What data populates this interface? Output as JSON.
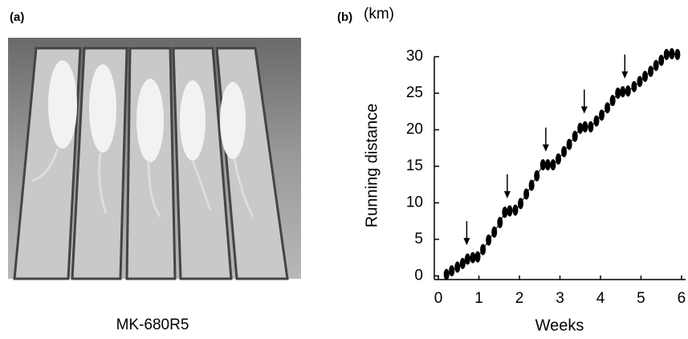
{
  "photo_panel": {
    "label": "(a)",
    "caption": "MK-680R5"
  },
  "chart_data": {
    "type": "line",
    "label": "(b)",
    "unit": "(km)",
    "y_label": "Running distance",
    "x_label": "Weeks",
    "x": [
      0.2,
      0.33,
      0.47,
      0.6,
      0.72,
      0.85,
      0.97,
      1.1,
      1.24,
      1.38,
      1.52,
      1.64,
      1.76,
      1.9,
      2.03,
      2.17,
      2.3,
      2.43,
      2.58,
      2.7,
      2.83,
      2.96,
      3.1,
      3.23,
      3.37,
      3.5,
      3.62,
      3.76,
      3.9,
      4.03,
      4.17,
      4.3,
      4.43,
      4.55,
      4.68,
      4.83,
      4.97,
      5.1,
      5.24,
      5.37,
      5.5,
      5.63,
      5.76,
      5.9
    ],
    "series": [
      {
        "color": "#000000",
        "values": [
          0.2,
          0.7,
          1.2,
          1.7,
          2.3,
          2.5,
          2.6,
          3.6,
          4.9,
          6.0,
          7.3,
          8.7,
          8.9,
          9.0,
          9.9,
          11.2,
          12.4,
          13.7,
          15.2,
          15.2,
          15.2,
          16.0,
          17.0,
          18.0,
          19.1,
          20.2,
          20.4,
          20.4,
          21.2,
          22.0,
          23.0,
          24.0,
          25.0,
          25.2,
          25.3,
          25.9,
          26.6,
          27.3,
          28.0,
          28.8,
          29.5,
          30.3,
          30.4,
          30.3
        ]
      }
    ],
    "arrows": [
      {
        "x": 0.7,
        "y": 4.2
      },
      {
        "x": 1.7,
        "y": 10.6
      },
      {
        "x": 2.65,
        "y": 17.0
      },
      {
        "x": 3.6,
        "y": 22.2
      },
      {
        "x": 4.6,
        "y": 27.0
      }
    ],
    "xlim": [
      -0.1,
      6.1
    ],
    "xticks": [
      0,
      1,
      2,
      3,
      4,
      5,
      6
    ],
    "ylim": [
      -0.5,
      30.5
    ],
    "yticks": [
      0,
      5,
      10,
      15,
      20,
      25,
      30
    ]
  }
}
